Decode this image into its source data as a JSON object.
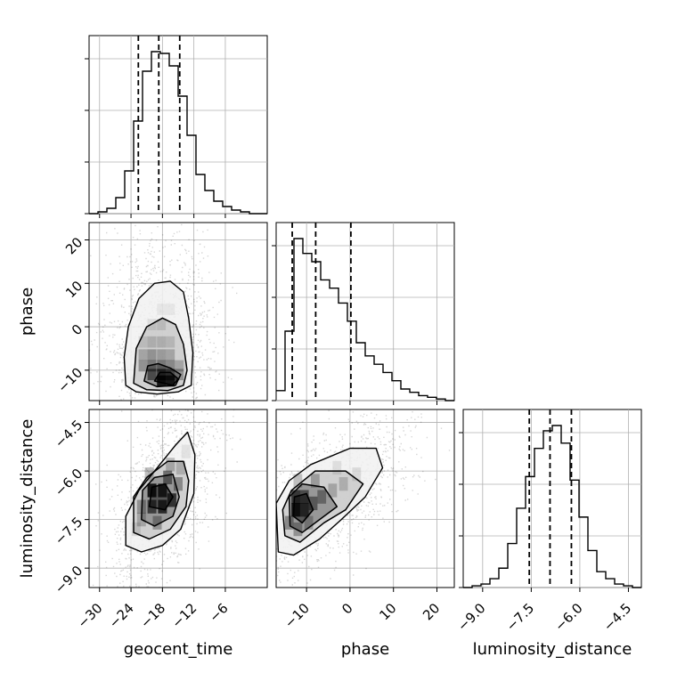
{
  "chart_data": {
    "type": "corner",
    "parameters": [
      "geocent_time",
      "phase",
      "luminosity_distance"
    ],
    "axis_labels": {
      "geocent_time": "geocent_time",
      "phase": "phase",
      "luminosity_distance": "luminosity_distance"
    },
    "ranges": {
      "geocent_time": [
        -32,
        2
      ],
      "phase": [
        -17,
        24
      ],
      "luminosity_distance": [
        -9.6,
        -4.1
      ]
    },
    "ticks": {
      "geocent_time": [
        -30,
        -24,
        -18,
        -12,
        -6
      ],
      "phase": [
        -10,
        0,
        10,
        20
      ],
      "luminosity_distance": [
        -9.0,
        -7.5,
        -6.0,
        -4.5
      ]
    },
    "tick_labels": {
      "geocent_time": [
        "−30",
        "−24",
        "−18",
        "−12",
        "−6"
      ],
      "phase": [
        "−10",
        "0",
        "10",
        "20"
      ],
      "luminosity_distance": [
        "−9.0",
        "−7.5",
        "−6.0",
        "−4.5"
      ]
    },
    "quantiles": {
      "geocent_time": [
        -22.6,
        -18.7,
        -14.7
      ],
      "phase": [
        -13.3,
        -7.9,
        0.2
      ],
      "luminosity_distance": [
        -7.56,
        -6.92,
        -6.26
      ]
    },
    "histograms": {
      "geocent_time": {
        "edges": [
          -32.0,
          -30.3,
          -28.6,
          -26.9,
          -25.2,
          -23.5,
          -21.8,
          -20.1,
          -18.4,
          -16.7,
          -15.0,
          -13.3,
          -11.6,
          -9.9,
          -8.2,
          -6.5,
          -4.8,
          -3.1,
          -1.4,
          0.3,
          2.0
        ],
        "counts": [
          0,
          1,
          3,
          9,
          24,
          52,
          80,
          91,
          90,
          83,
          66,
          44,
          22,
          13,
          7,
          4,
          2,
          1,
          0,
          0
        ]
      },
      "phase": {
        "edges": [
          -17,
          -14.95,
          -12.9,
          -10.85,
          -8.8,
          -6.75,
          -4.7,
          -2.65,
          -0.6,
          1.45,
          3.5,
          5.55,
          7.6,
          9.65,
          11.7,
          13.75,
          15.8,
          17.85,
          19.9,
          21.95,
          24
        ],
        "counts": [
          6,
          42,
          98,
          89,
          84,
          73,
          68,
          59,
          48,
          35,
          27,
          22,
          17,
          12,
          7,
          5,
          3,
          2,
          1,
          0
        ]
      },
      "luminosity_distance": {
        "edges": [
          -9.6,
          -9.325,
          -9.05,
          -8.775,
          -8.5,
          -8.225,
          -7.95,
          -7.675,
          -7.4,
          -7.125,
          -6.85,
          -6.575,
          -6.3,
          -6.025,
          -5.75,
          -5.475,
          -5.2,
          -4.925,
          -4.65,
          -4.375,
          -4.1
        ],
        "counts": [
          0,
          1,
          2,
          5,
          11,
          25,
          45,
          63,
          79,
          89,
          92,
          82,
          61,
          40,
          21,
          9,
          5,
          2,
          1,
          0
        ]
      }
    },
    "contours": [
      {
        "panel": "phase_vs_geocent_time",
        "x": "geocent_time",
        "y": "phase",
        "levels": [
          {
            "level": "outer",
            "points": [
              [
                -25.0,
                -13.5
              ],
              [
                -23.0,
                -15.0
              ],
              [
                -19.0,
                -15.5
              ],
              [
                -15.0,
                -15.0
              ],
              [
                -12.5,
                -13.5
              ],
              [
                -12.2,
                -6.0
              ],
              [
                -13.0,
                2.0
              ],
              [
                -14.0,
                8.0
              ],
              [
                -16.5,
                10.5
              ],
              [
                -19.5,
                10.0
              ],
              [
                -22.5,
                6.5
              ],
              [
                -24.5,
                0.0
              ],
              [
                -25.3,
                -7.0
              ]
            ]
          },
          {
            "level": "second",
            "points": [
              [
                -23.5,
                -13.0
              ],
              [
                -21.0,
                -14.5
              ],
              [
                -17.0,
                -14.7
              ],
              [
                -14.0,
                -13.5
              ],
              [
                -13.3,
                -10.0
              ],
              [
                -14.0,
                -4.0
              ],
              [
                -15.5,
                0.5
              ],
              [
                -18.0,
                2.0
              ],
              [
                -21.0,
                0.0
              ],
              [
                -23.0,
                -5.0
              ]
            ]
          },
          {
            "level": "third",
            "points": [
              [
                -21.5,
                -12.5
              ],
              [
                -19.0,
                -13.8
              ],
              [
                -15.5,
                -13.5
              ],
              [
                -14.5,
                -11.0
              ],
              [
                -16.5,
                -9.5
              ],
              [
                -18.8,
                -8.5
              ],
              [
                -20.8,
                -9.0
              ]
            ]
          },
          {
            "level": "inner",
            "points": [
              [
                -19.5,
                -12.5
              ],
              [
                -16.0,
                -13.5
              ],
              [
                -15.0,
                -12.0
              ],
              [
                -16.5,
                -10.5
              ],
              [
                -18.5,
                -10.5
              ]
            ]
          }
        ]
      },
      {
        "panel": "luminosity_distance_vs_geocent_time",
        "x": "geocent_time",
        "y": "luminosity_distance",
        "levels": [
          {
            "level": "outer",
            "points": [
              [
                -25.0,
                -8.3
              ],
              [
                -22.0,
                -8.5
              ],
              [
                -18.0,
                -8.3
              ],
              [
                -14.5,
                -7.8
              ],
              [
                -12.0,
                -6.7
              ],
              [
                -11.8,
                -5.5
              ],
              [
                -13.2,
                -4.8
              ],
              [
                -15.5,
                -5.2
              ],
              [
                -19.0,
                -5.9
              ],
              [
                -22.5,
                -6.6
              ],
              [
                -25.0,
                -7.4
              ]
            ]
          },
          {
            "level": "second",
            "points": [
              [
                -23.5,
                -7.9
              ],
              [
                -20.5,
                -8.1
              ],
              [
                -16.5,
                -7.8
              ],
              [
                -13.5,
                -7.1
              ],
              [
                -13.0,
                -6.3
              ],
              [
                -14.0,
                -5.7
              ],
              [
                -17.0,
                -5.7
              ],
              [
                -21.0,
                -6.2
              ],
              [
                -23.5,
                -6.8
              ]
            ]
          },
          {
            "level": "third",
            "points": [
              [
                -22.0,
                -7.5
              ],
              [
                -19.5,
                -7.7
              ],
              [
                -16.0,
                -7.4
              ],
              [
                -14.8,
                -6.8
              ],
              [
                -16.0,
                -6.1
              ],
              [
                -19.5,
                -6.2
              ],
              [
                -21.8,
                -6.6
              ]
            ]
          },
          {
            "level": "inner",
            "points": [
              [
                -20.5,
                -7.1
              ],
              [
                -17.5,
                -7.2
              ],
              [
                -16.0,
                -6.8
              ],
              [
                -17.5,
                -6.4
              ],
              [
                -20.0,
                -6.5
              ]
            ]
          }
        ]
      },
      {
        "panel": "luminosity_distance_vs_phase",
        "x": "phase",
        "y": "luminosity_distance",
        "levels": [
          {
            "level": "outer",
            "points": [
              [
                -16.5,
                -8.5
              ],
              [
                -13.0,
                -8.6
              ],
              [
                -7.0,
                -8.1
              ],
              [
                -2.0,
                -7.5
              ],
              [
                3.5,
                -6.8
              ],
              [
                7.5,
                -5.9
              ],
              [
                6.0,
                -5.3
              ],
              [
                0.0,
                -5.3
              ],
              [
                -9.0,
                -5.8
              ],
              [
                -14.0,
                -6.3
              ],
              [
                -17.0,
                -7.0
              ]
            ]
          },
          {
            "level": "second",
            "points": [
              [
                -15.0,
                -8.0
              ],
              [
                -11.5,
                -8.2
              ],
              [
                -6.0,
                -7.6
              ],
              [
                -1.0,
                -7.2
              ],
              [
                3.0,
                -6.4
              ],
              [
                -1.0,
                -6.0
              ],
              [
                -8.0,
                -6.0
              ],
              [
                -13.5,
                -6.6
              ],
              [
                -15.5,
                -7.2
              ]
            ]
          },
          {
            "level": "third",
            "points": [
              [
                -13.8,
                -7.7
              ],
              [
                -11.0,
                -7.9
              ],
              [
                -7.0,
                -7.5
              ],
              [
                -3.0,
                -7.1
              ],
              [
                -6.0,
                -6.5
              ],
              [
                -11.0,
                -6.4
              ],
              [
                -14.0,
                -6.8
              ]
            ]
          },
          {
            "level": "inner",
            "points": [
              [
                -13.0,
                -7.4
              ],
              [
                -11.0,
                -7.6
              ],
              [
                -8.5,
                -7.2
              ],
              [
                -10.0,
                -6.7
              ],
              [
                -12.8,
                -6.8
              ]
            ]
          }
        ]
      }
    ],
    "density_cells": [
      {
        "panel": "phase_vs_geocent_time",
        "cells": [
          [
            -18.2,
            -12.5,
            1.0
          ],
          [
            -16.5,
            -12.5,
            0.85
          ],
          [
            -20.0,
            -11.0,
            0.6
          ],
          [
            -18.2,
            -11.0,
            0.75
          ],
          [
            -16.5,
            -11.0,
            0.6
          ],
          [
            -14.8,
            -11.0,
            0.35
          ],
          [
            -21.7,
            -9.0,
            0.35
          ],
          [
            -20.0,
            -9.0,
            0.5
          ],
          [
            -18.2,
            -9.0,
            0.5
          ],
          [
            -16.5,
            -9.0,
            0.4
          ],
          [
            -14.8,
            -9.0,
            0.25
          ],
          [
            -21.7,
            -6.5,
            0.25
          ],
          [
            -20.0,
            -6.5,
            0.35
          ],
          [
            -18.2,
            -6.5,
            0.3
          ],
          [
            -16.5,
            -6.5,
            0.25
          ],
          [
            -20.0,
            -3.5,
            0.2
          ],
          [
            -18.2,
            -3.5,
            0.2
          ],
          [
            -16.5,
            -3.5,
            0.15
          ],
          [
            -21.7,
            -3.5,
            0.12
          ],
          [
            -20.0,
            0.5,
            0.1
          ],
          [
            -18.2,
            0.5,
            0.12
          ],
          [
            -18.2,
            4.0,
            0.06
          ],
          [
            -16.5,
            4.0,
            0.06
          ]
        ]
      },
      {
        "panel": "luminosity_distance_vs_geocent_time",
        "cells": [
          [
            -20.0,
            -6.6,
            1.0
          ],
          [
            -18.0,
            -6.6,
            0.9
          ],
          [
            -18.0,
            -7.1,
            0.85
          ],
          [
            -20.0,
            -7.1,
            0.7
          ],
          [
            -16.2,
            -6.9,
            0.8
          ],
          [
            -17.0,
            -6.2,
            0.55
          ],
          [
            -22.0,
            -7.1,
            0.35
          ],
          [
            -22.0,
            -7.5,
            0.25
          ],
          [
            -19.0,
            -7.6,
            0.35
          ],
          [
            -15.0,
            -6.4,
            0.4
          ],
          [
            -14.5,
            -5.9,
            0.2
          ],
          [
            -16.5,
            -5.8,
            0.25
          ],
          [
            -20.5,
            -6.1,
            0.3
          ],
          [
            -23.0,
            -7.8,
            0.12
          ],
          [
            -13.5,
            -5.4,
            0.08
          ]
        ]
      },
      {
        "panel": "luminosity_distance_vs_phase",
        "cells": [
          [
            -12.5,
            -7.2,
            1.0
          ],
          [
            -10.5,
            -7.2,
            0.7
          ],
          [
            -12.5,
            -6.8,
            0.75
          ],
          [
            -10.5,
            -6.8,
            0.6
          ],
          [
            -8.5,
            -7.0,
            0.5
          ],
          [
            -6.5,
            -6.8,
            0.4
          ],
          [
            -14.0,
            -7.6,
            0.4
          ],
          [
            -12.0,
            -7.8,
            0.35
          ],
          [
            -9.5,
            -7.6,
            0.3
          ],
          [
            -4.0,
            -6.6,
            0.25
          ],
          [
            -1.5,
            -6.4,
            0.2
          ],
          [
            -8.0,
            -6.3,
            0.3
          ],
          [
            -12.0,
            -6.3,
            0.25
          ],
          [
            1.5,
            -6.1,
            0.12
          ],
          [
            -3.0,
            -5.9,
            0.1
          ]
        ]
      }
    ]
  }
}
